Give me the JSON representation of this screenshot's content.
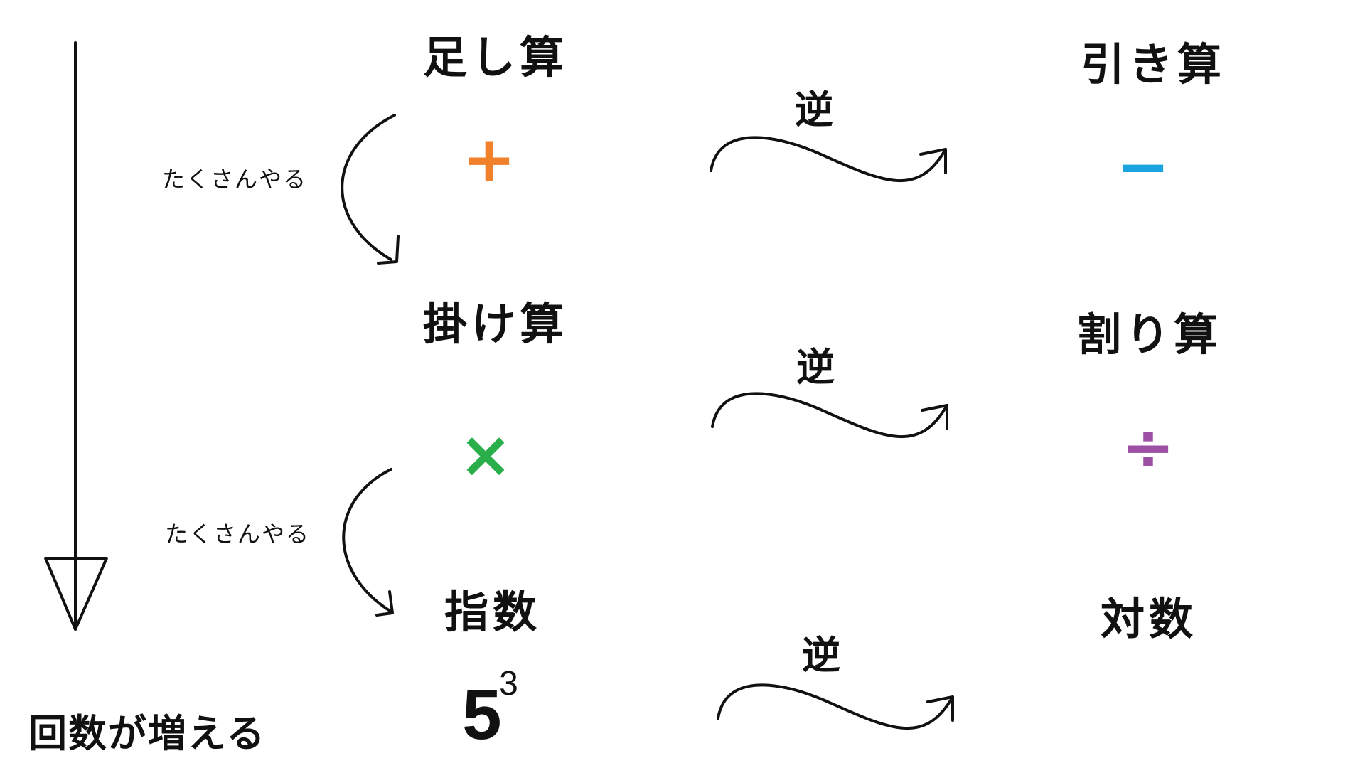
{
  "operations": {
    "add": {
      "label": "足し算",
      "symbol": "+",
      "color": "#f0802a"
    },
    "subtract": {
      "label": "引き算",
      "symbol": "−",
      "color": "#1aa3df"
    },
    "multiply": {
      "label": "掛け算",
      "symbol": "×",
      "color": "#2aae4a"
    },
    "divide": {
      "label": "割り算",
      "symbol": "÷",
      "color": "#9b4fa5"
    },
    "power": {
      "label": "指数",
      "base": "5",
      "exponent": "3"
    },
    "log": {
      "label": "対数"
    }
  },
  "inverse_label": "逆",
  "repeat_label": "たくさんやる",
  "increase_label": "回数が増える"
}
